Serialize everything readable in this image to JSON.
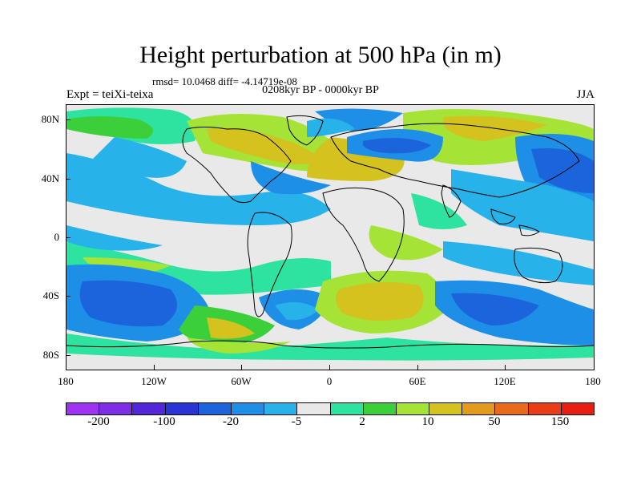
{
  "title": "Height perturbation at 500 hPa (in m)",
  "stats_line": "rmsd= 10.0468 diff= -4.14719e-08",
  "period_line": "0208kyr BP - 0000kyr BP",
  "experiment": "Expt = teiXi-teixa",
  "season": "JJA",
  "map": {
    "projection": "cylindrical-equidistant",
    "lat_labels": [
      "80N",
      "40N",
      "0",
      "40S",
      "80S"
    ],
    "lon_labels": [
      "180",
      "120W",
      "60W",
      "0",
      "60E",
      "120E",
      "180"
    ],
    "coastlines": true
  },
  "colorbar": {
    "colors": [
      "#9e33f2",
      "#7e2ee6",
      "#5227d8",
      "#2a34d4",
      "#1b64db",
      "#1d8fe6",
      "#27b3ea",
      "#e8e8e8",
      "#2ee39f",
      "#3bcf3a",
      "#a6e337",
      "#d4c21f",
      "#e39b1b",
      "#e96a19",
      "#e93d15",
      "#e61f12"
    ],
    "labels": [
      "-200",
      "-100",
      "-20",
      "-5",
      "2",
      "10",
      "50",
      "150"
    ]
  }
}
